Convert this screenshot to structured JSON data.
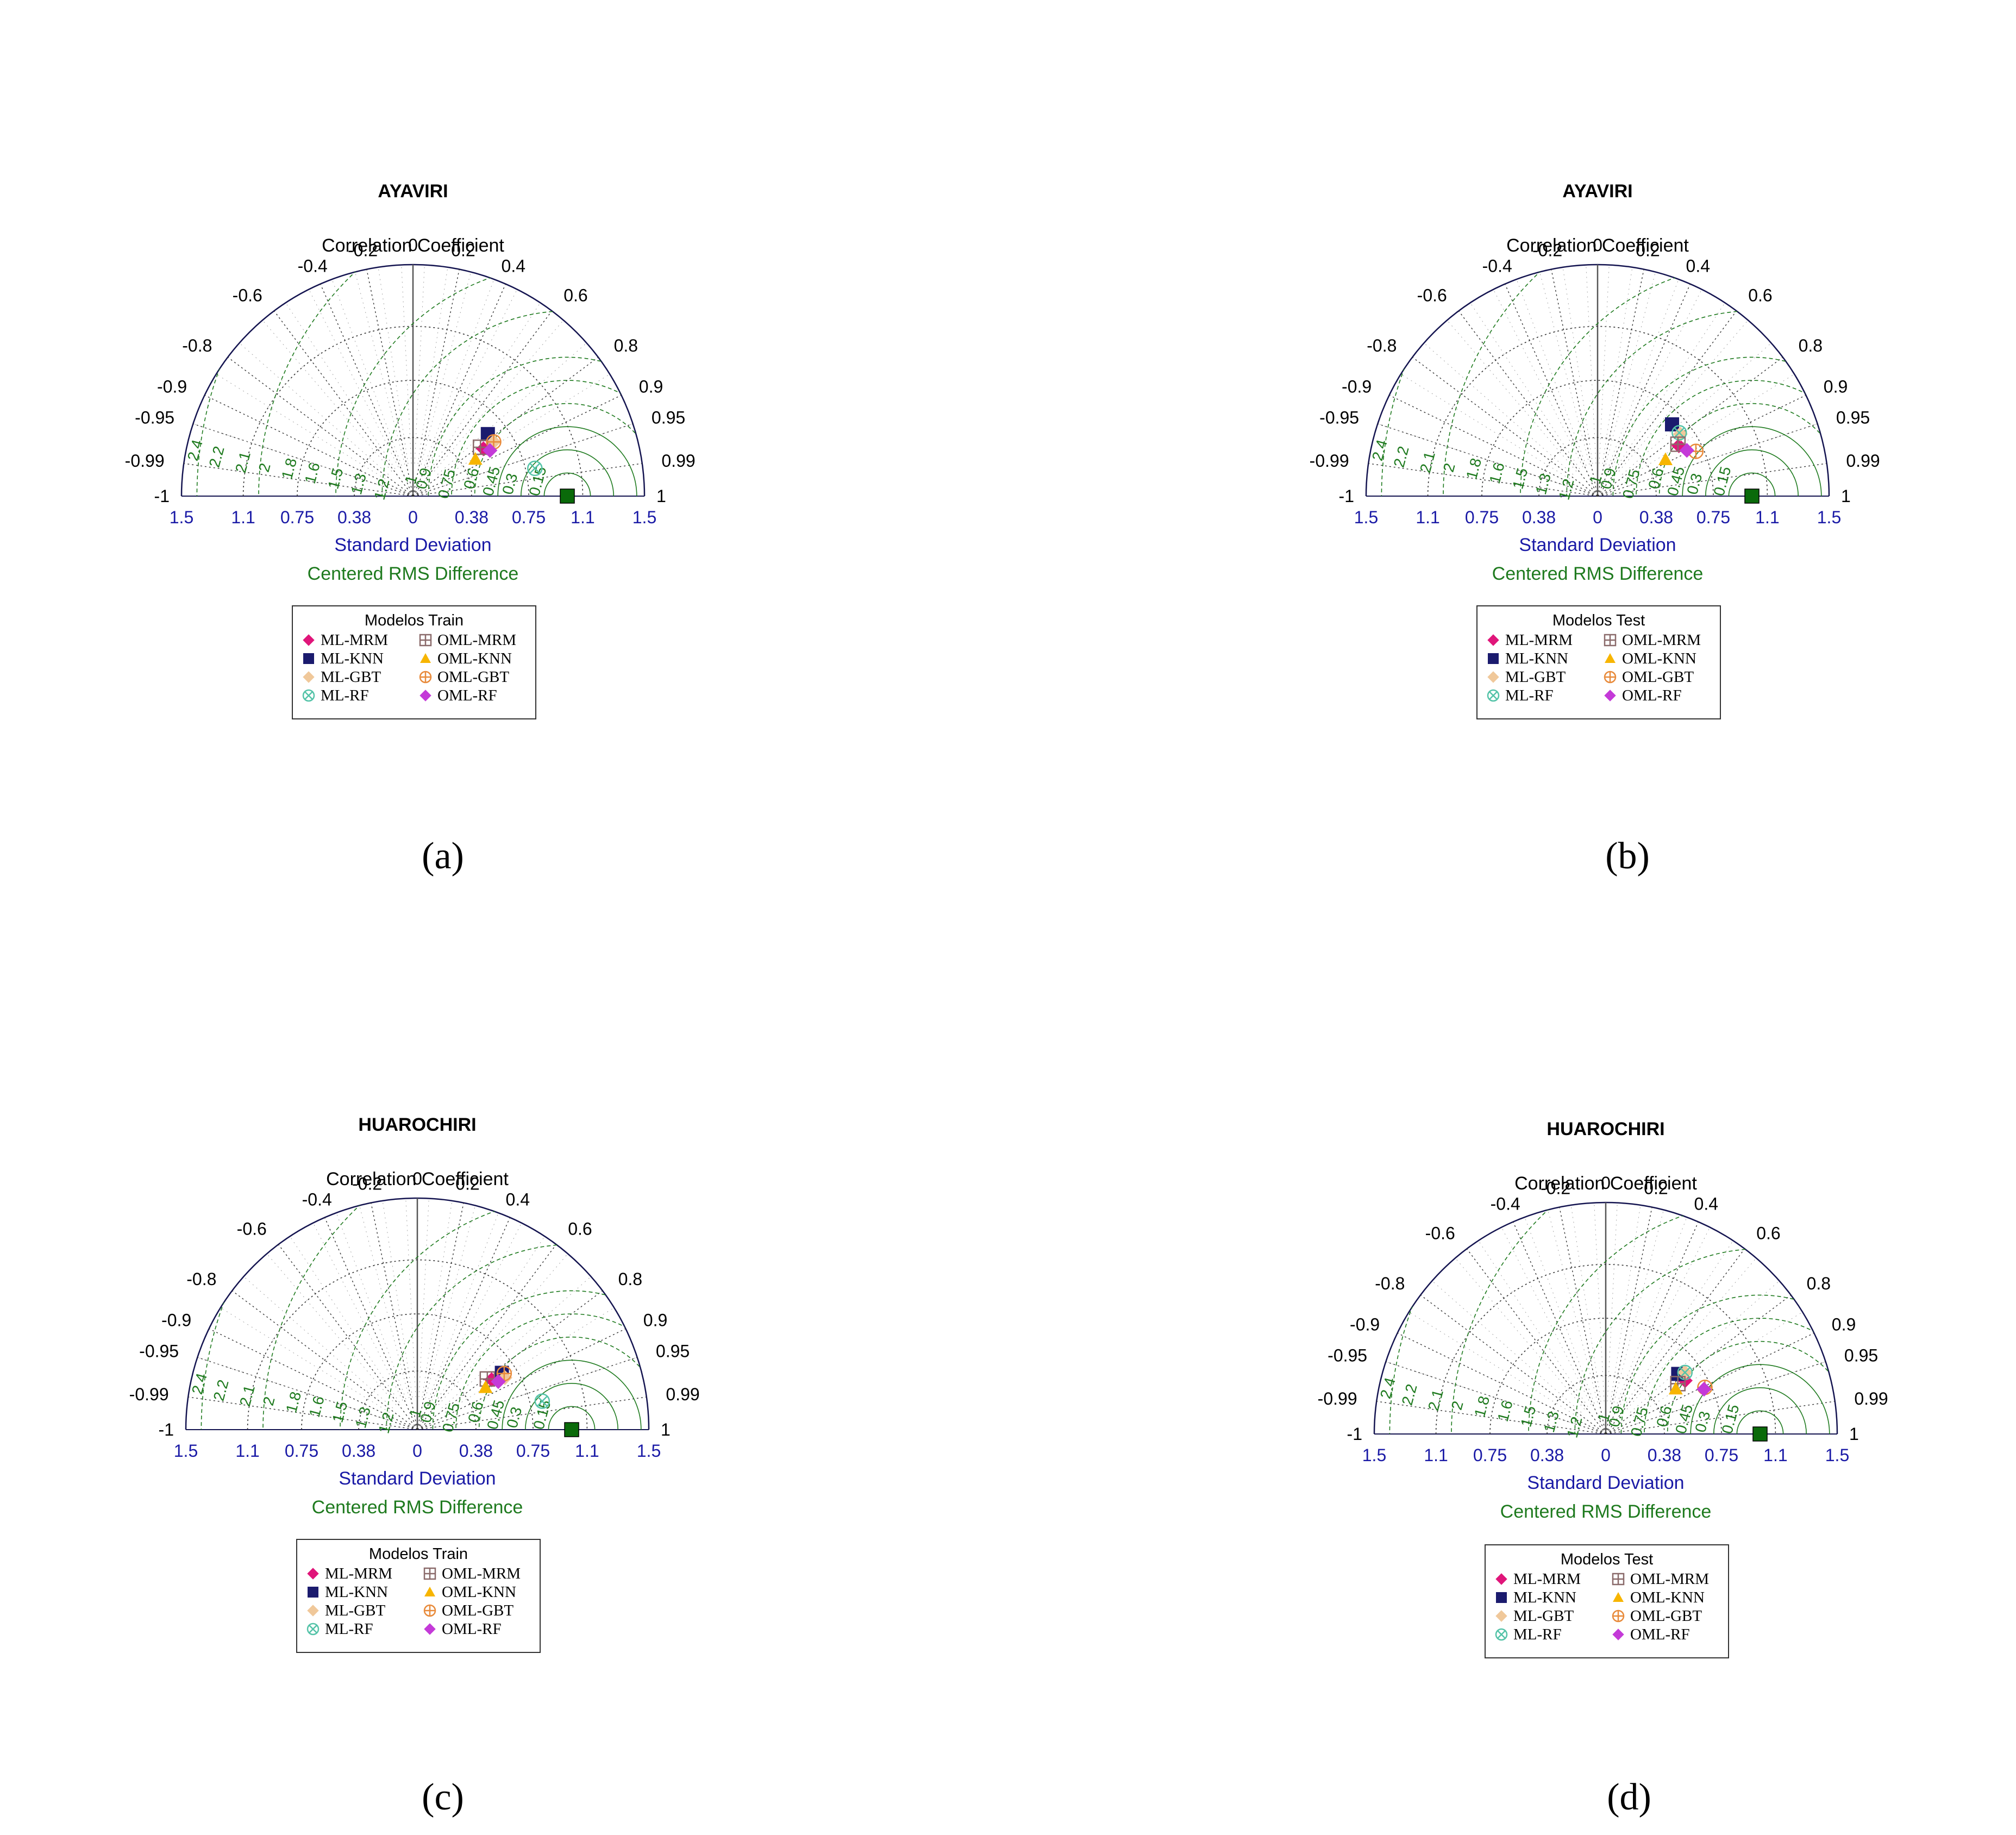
{
  "colors": {
    "ML-MRM": "#e0157a",
    "ML-KNN": "#1b1b6e",
    "ML-GBT": "#f0c89a",
    "ML-RF": "#54c3a8",
    "OML-MRM": "#8a6a6a",
    "OML-KNN": "#f7b500",
    "OML-GBT": "#e88a3a",
    "OML-RF": "#c43ad8",
    "reference": "#0a6a0a",
    "axis": "#141450",
    "rms": "#1e7a1e",
    "sd": "#1a1aa6"
  },
  "shared": {
    "corr_title": "Correlation Coefficient",
    "xlabel": "Standard Deviation",
    "rms_label": "Centered RMS Difference",
    "corr_ticks": [
      "-1",
      "-0.99",
      "-0.95",
      "-0.9",
      "-0.8",
      "-0.6",
      "-0.4",
      "-0.2",
      "0",
      "0.2",
      "0.4",
      "0.6",
      "0.8",
      "0.9",
      "0.95",
      "0.99",
      "1"
    ],
    "sd_ticks": [
      "1.5",
      "1.1",
      "0.75",
      "0.38",
      "0",
      "0.38",
      "0.75",
      "1.1",
      "1.5"
    ],
    "rms_ticks": [
      "2.4",
      "2.2",
      "2.1",
      "2",
      "1.8",
      "1.6",
      "1.5",
      "1.3",
      "1.2",
      "1",
      "0.9",
      "0.75",
      "0.6",
      "0.45",
      "0.3",
      "0.15"
    ]
  },
  "chart_data": [
    {
      "type": "scatter",
      "subtype": "taylor-diagram",
      "caption": "(a)",
      "title": "AYAVIRI",
      "legend_title": "Modelos Train",
      "sd_range": [
        0,
        1.5
      ],
      "reference": {
        "sd": 1.0,
        "corr": 1.0
      },
      "series": [
        {
          "name": "ML-MRM",
          "marker": "diamond",
          "sd": 0.55,
          "corr": 0.83
        },
        {
          "name": "ML-KNN",
          "marker": "square",
          "sd": 0.63,
          "corr": 0.77
        },
        {
          "name": "ML-GBT",
          "marker": "diamond",
          "sd": 0.63,
          "corr": 0.83
        },
        {
          "name": "ML-RF",
          "marker": "circle-x",
          "sd": 0.81,
          "corr": 0.975
        },
        {
          "name": "OML-MRM",
          "marker": "square-plus",
          "sd": 0.54,
          "corr": 0.81
        },
        {
          "name": "OML-KNN",
          "marker": "triangle",
          "sd": 0.47,
          "corr": 0.86
        },
        {
          "name": "OML-GBT",
          "marker": "circle-plus",
          "sd": 0.63,
          "corr": 0.83
        },
        {
          "name": "OML-RF",
          "marker": "diamond",
          "sd": 0.58,
          "corr": 0.86
        }
      ]
    },
    {
      "type": "scatter",
      "subtype": "taylor-diagram",
      "caption": "(b)",
      "title": "AYAVIRI",
      "legend_title": "Modelos Test",
      "sd_range": [
        0,
        1.5
      ],
      "reference": {
        "sd": 1.0,
        "corr": 1.0
      },
      "series": [
        {
          "name": "ML-MRM",
          "marker": "diamond",
          "sd": 0.62,
          "corr": 0.85
        },
        {
          "name": "ML-KNN",
          "marker": "square",
          "sd": 0.67,
          "corr": 0.72
        },
        {
          "name": "ML-GBT",
          "marker": "diamond",
          "sd": 0.67,
          "corr": 0.8
        },
        {
          "name": "ML-RF",
          "marker": "circle-x",
          "sd": 0.67,
          "corr": 0.79
        },
        {
          "name": "OML-MRM",
          "marker": "square-plus",
          "sd": 0.62,
          "corr": 0.84
        },
        {
          "name": "OML-KNN",
          "marker": "triangle",
          "sd": 0.5,
          "corr": 0.88
        },
        {
          "name": "OML-GBT",
          "marker": "circle-plus",
          "sd": 0.7,
          "corr": 0.91
        },
        {
          "name": "OML-RF",
          "marker": "diamond",
          "sd": 0.65,
          "corr": 0.89
        }
      ]
    },
    {
      "type": "scatter",
      "subtype": "taylor-diagram",
      "caption": "(c)",
      "title": "HUAROCHIRI",
      "legend_title": "Modelos Train",
      "sd_range": [
        0,
        1.5
      ],
      "reference": {
        "sd": 1.0,
        "corr": 1.0
      },
      "series": [
        {
          "name": "ML-MRM",
          "marker": "diamond",
          "sd": 0.58,
          "corr": 0.83
        },
        {
          "name": "ML-KNN",
          "marker": "square",
          "sd": 0.66,
          "corr": 0.83
        },
        {
          "name": "ML-GBT",
          "marker": "diamond",
          "sd": 0.66,
          "corr": 0.86
        },
        {
          "name": "ML-RF",
          "marker": "circle-x",
          "sd": 0.83,
          "corr": 0.975
        },
        {
          "name": "OML-MRM",
          "marker": "square-plus",
          "sd": 0.56,
          "corr": 0.81
        },
        {
          "name": "OML-KNN",
          "marker": "triangle",
          "sd": 0.52,
          "corr": 0.85
        },
        {
          "name": "OML-GBT",
          "marker": "circle-plus",
          "sd": 0.67,
          "corr": 0.84
        },
        {
          "name": "OML-RF",
          "marker": "diamond",
          "sd": 0.61,
          "corr": 0.86
        }
      ]
    },
    {
      "type": "scatter",
      "subtype": "taylor-diagram",
      "caption": "(d)",
      "title": "HUAROCHIRI",
      "legend_title": "Modelos Test",
      "sd_range": [
        0,
        1.5
      ],
      "reference": {
        "sd": 1.0,
        "corr": 1.0
      },
      "series": [
        {
          "name": "ML-MRM",
          "marker": "diamond",
          "sd": 0.62,
          "corr": 0.83
        },
        {
          "name": "ML-KNN",
          "marker": "square",
          "sd": 0.61,
          "corr": 0.77
        },
        {
          "name": "ML-GBT",
          "marker": "diamond",
          "sd": 0.65,
          "corr": 0.79
        },
        {
          "name": "ML-RF",
          "marker": "circle-x",
          "sd": 0.65,
          "corr": 0.79
        },
        {
          "name": "OML-MRM",
          "marker": "square-plus",
          "sd": 0.57,
          "corr": 0.82
        },
        {
          "name": "OML-KNN",
          "marker": "triangle",
          "sd": 0.54,
          "corr": 0.84
        },
        {
          "name": "OML-GBT",
          "marker": "circle-plus",
          "sd": 0.71,
          "corr": 0.905
        },
        {
          "name": "OML-RF",
          "marker": "diamond",
          "sd": 0.7,
          "corr": 0.91
        }
      ]
    }
  ]
}
